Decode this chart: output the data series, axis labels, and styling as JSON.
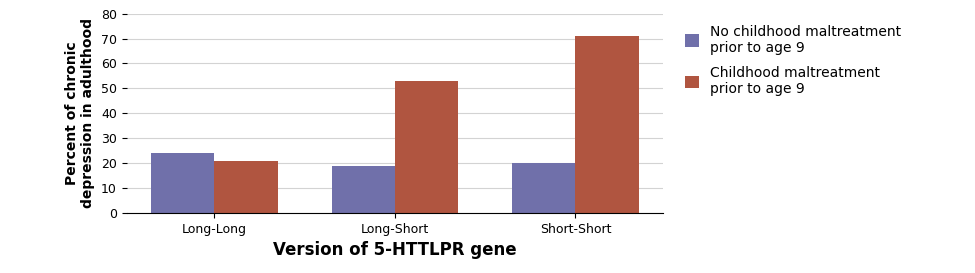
{
  "categories": [
    "Long-Long",
    "Long-Short",
    "Short-Short"
  ],
  "no_maltreatment": [
    24,
    19,
    20
  ],
  "maltreatment": [
    21,
    53,
    71
  ],
  "bar_color_no": "#7070aa",
  "bar_color_yes": "#b05540",
  "xlabel": "Version of 5-HTTLPR gene",
  "ylabel": "Percent of chronic\ndepression in adulthood",
  "ylim": [
    0,
    80
  ],
  "yticks": [
    0,
    10,
    20,
    30,
    40,
    50,
    60,
    70,
    80
  ],
  "legend_no": "No childhood maltreatment\nprior to age 9",
  "legend_yes": "Childhood maltreatment\nprior to age 9",
  "bar_width": 0.35,
  "xlabel_fontsize": 12,
  "ylabel_fontsize": 10,
  "tick_fontsize": 9,
  "legend_fontsize": 10
}
